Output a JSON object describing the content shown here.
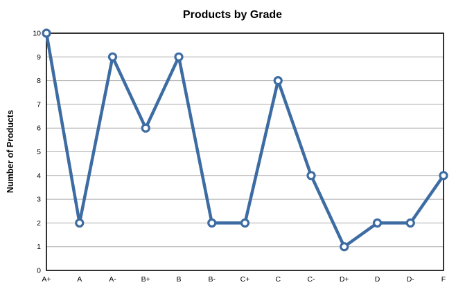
{
  "chart_data": {
    "type": "line",
    "title": "Products by Grade",
    "xlabel": "",
    "ylabel": "Number of Products",
    "categories": [
      "A+",
      "A",
      "A-",
      "B+",
      "B",
      "B-",
      "C+",
      "C",
      "C-",
      "D+",
      "D",
      "D-",
      "F"
    ],
    "values": [
      10,
      2,
      9,
      6,
      9,
      2,
      2,
      8,
      4,
      1,
      2,
      2,
      4
    ],
    "ylim": [
      0,
      10
    ],
    "ytick_step": 1,
    "yticks": [
      0,
      1,
      2,
      3,
      4,
      5,
      6,
      7,
      8,
      9,
      10
    ],
    "grid": "horizontal",
    "legend": "none",
    "colors": {
      "line": "#3D6CA3",
      "marker_fill": "#FFFFFF",
      "gridline": "#ABABAB",
      "axis_border": "#000000",
      "text": "#000000",
      "background": "#FFFFFF"
    }
  }
}
